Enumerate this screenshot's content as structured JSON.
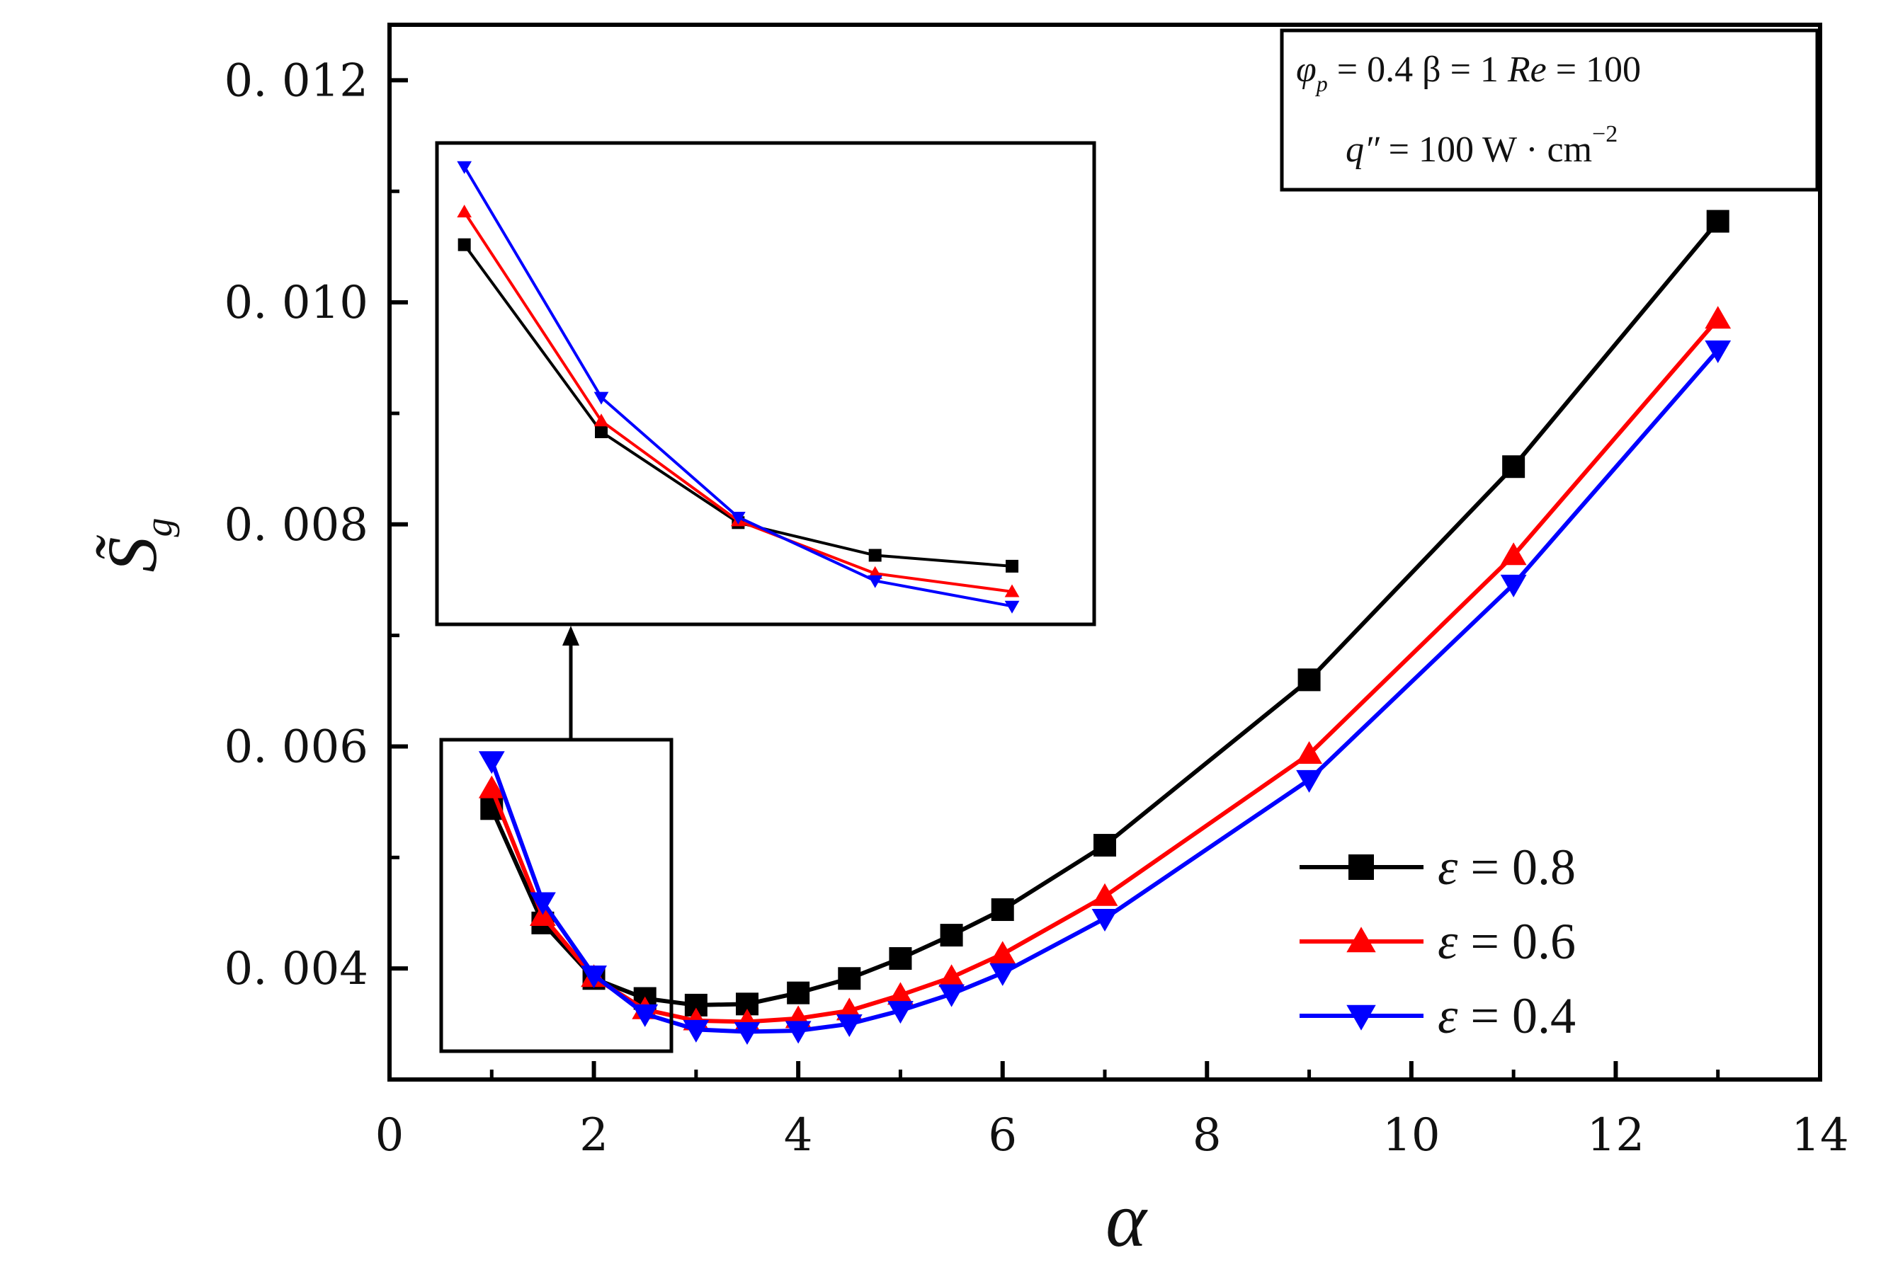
{
  "chart_data": {
    "type": "line",
    "xlabel": "α",
    "ylabel": "S̃",
    "ylabel_sub": "g",
    "xlim": [
      0,
      14
    ],
    "ylim": [
      0.003,
      0.0125
    ],
    "xticks": [
      0,
      2,
      4,
      6,
      8,
      10,
      12,
      14
    ],
    "xtick_labels": [
      "0",
      "2",
      "4",
      "6",
      "8",
      "10",
      "12",
      "14"
    ],
    "yticks": [
      0.004,
      0.006,
      0.008,
      0.01,
      0.012
    ],
    "ytick_labels": [
      "0. 004",
      "0. 006",
      "0. 008",
      "0. 010",
      "0. 012"
    ],
    "x": [
      1,
      1.5,
      2,
      2.5,
      3,
      3.5,
      4,
      4.5,
      5,
      5.5,
      6,
      7,
      9,
      11,
      13
    ],
    "series": [
      {
        "name": "ε = 0.8",
        "label_symbol": "ε",
        "label_value": " = 0.8",
        "color": "#000000",
        "marker": "square",
        "values": [
          0.00544,
          0.00441,
          0.00391,
          0.00373,
          0.00367,
          0.00368,
          0.00378,
          0.00391,
          0.00409,
          0.0043,
          0.00453,
          0.00511,
          0.0066,
          0.00852,
          0.01073
        ]
      },
      {
        "name": "ε = 0.6",
        "label_symbol": "ε",
        "label_value": " = 0.6",
        "color": "#ff0000",
        "marker": "triangle-up",
        "values": [
          0.00562,
          0.00447,
          0.00392,
          0.00363,
          0.00353,
          0.00352,
          0.00355,
          0.00362,
          0.00376,
          0.00392,
          0.00413,
          0.00465,
          0.00593,
          0.00772,
          0.00985
        ]
      },
      {
        "name": "ε = 0.4",
        "label_symbol": "ε",
        "label_value": " = 0.4",
        "color": "#0000ff",
        "marker": "triangle-down",
        "values": [
          0.00587,
          0.0046,
          0.00394,
          0.00359,
          0.00345,
          0.00343,
          0.00344,
          0.0035,
          0.00362,
          0.00377,
          0.00396,
          0.00445,
          0.0057,
          0.00746,
          0.00957
        ]
      }
    ],
    "inset": {
      "description_x_range": [
        1,
        3
      ],
      "x": [
        1,
        1.5,
        2,
        2.5,
        3
      ]
    },
    "annotation": {
      "line1_phi": "φ",
      "line1_phi_sub": "p",
      "line1_rest": " = 0.4   β = 1   ",
      "line1_re": "Re",
      "line1_re_val": " = 100",
      "line2_q": "q″",
      "line2_rest": " = 100 W · cm",
      "line2_exp": "−2"
    },
    "legend_position": "lower-right"
  }
}
